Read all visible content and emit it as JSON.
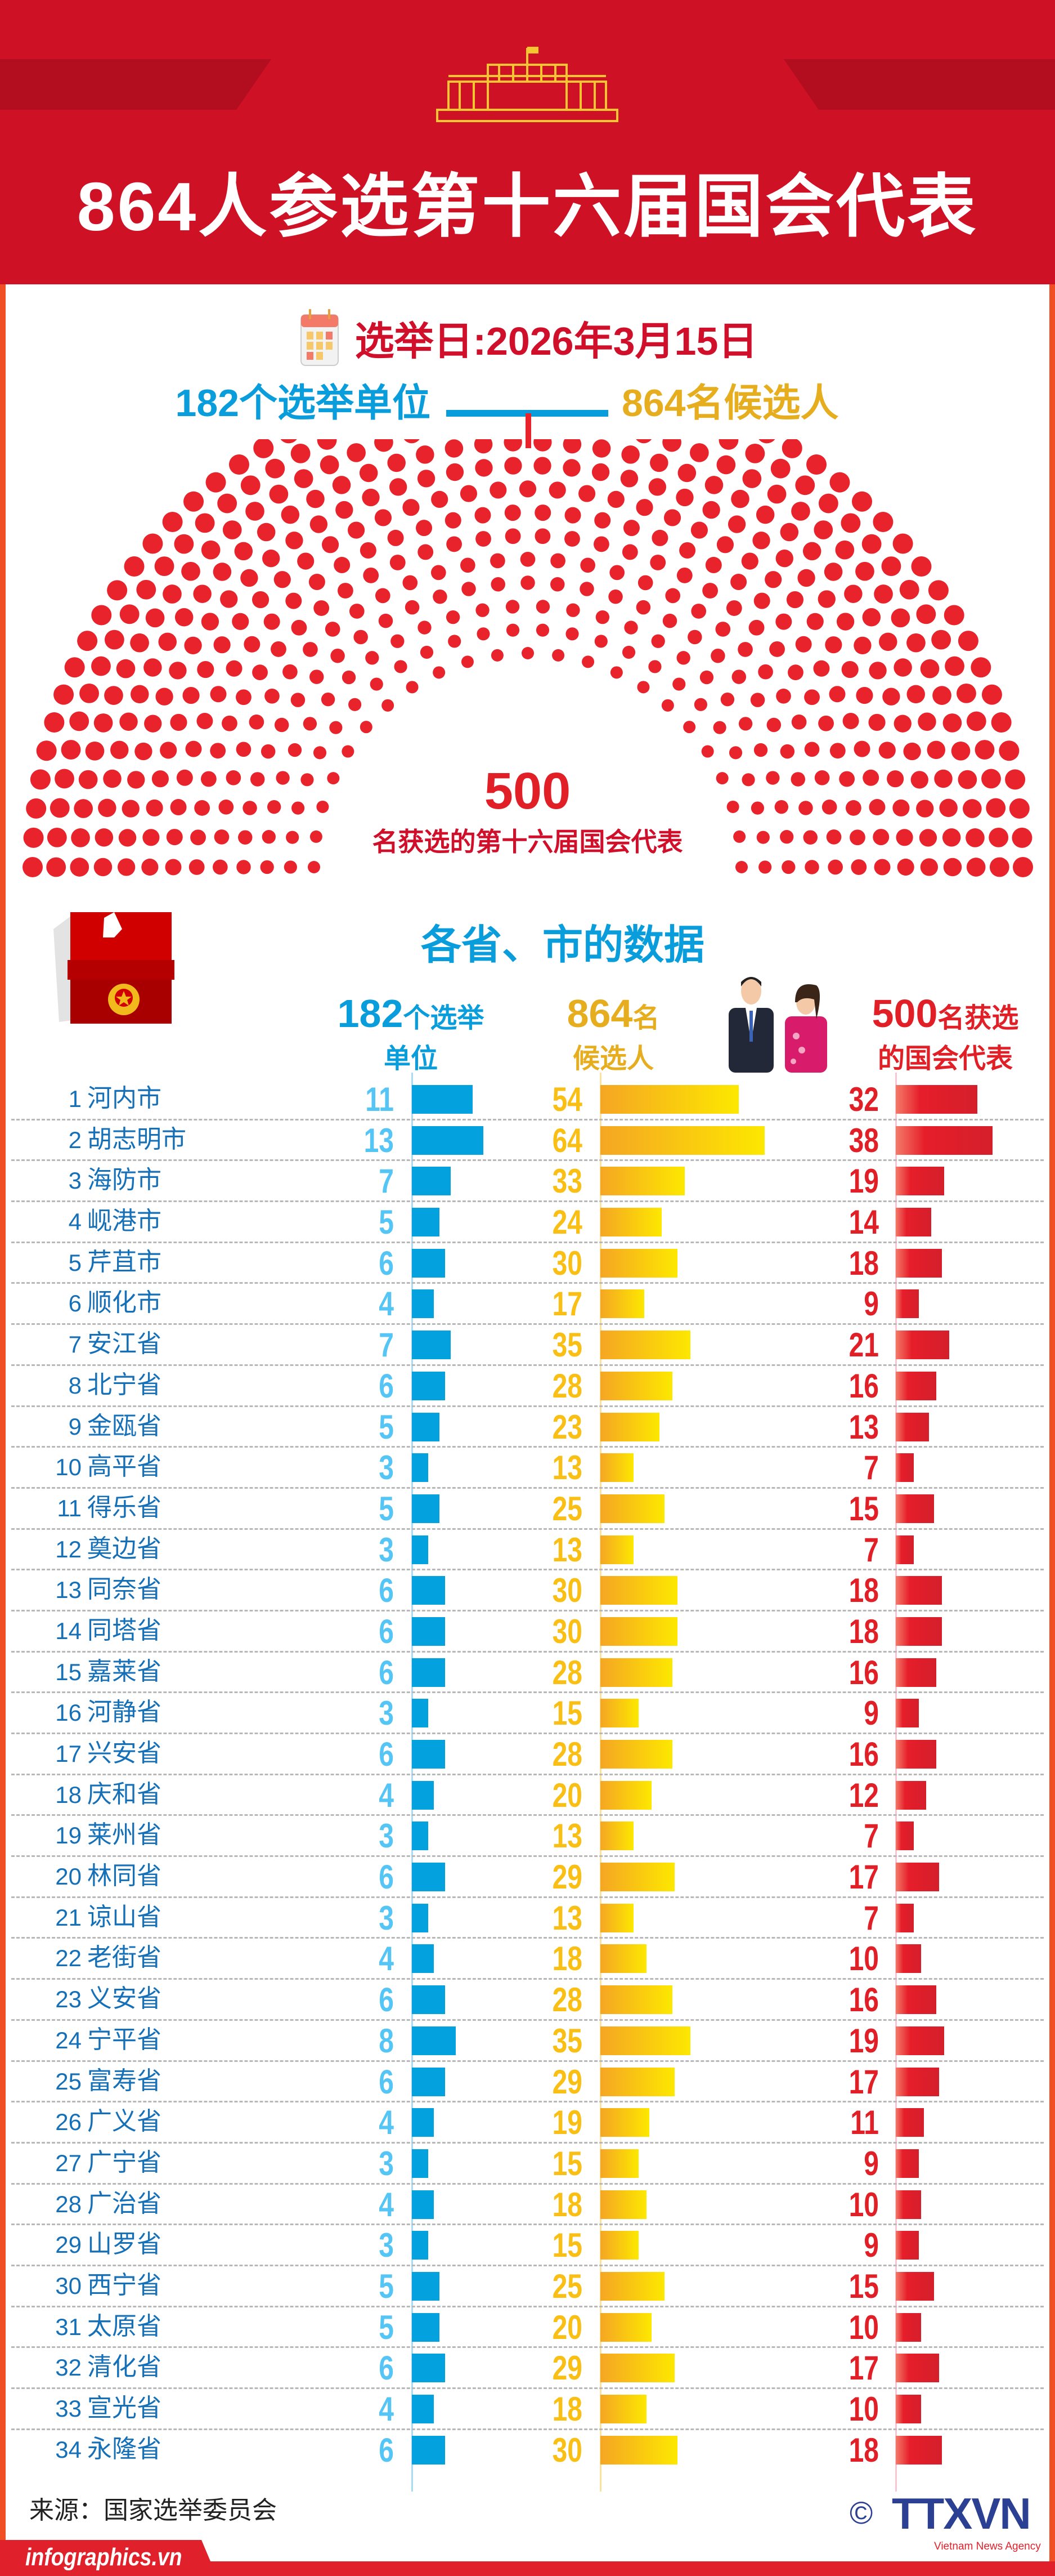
{
  "header": {
    "title": "864人参选第十六届国会代表"
  },
  "election_date": "选举日:2026年3月15日",
  "summary": {
    "constituencies": "182个选举单位",
    "candidates": "864名候选人"
  },
  "hemicycle": {
    "seats": 500,
    "number": "500",
    "label": "名获选的第十六届国会代表",
    "dot_color": "#e8232b"
  },
  "section_title": "各省、市的数据",
  "columns": [
    {
      "big": "182",
      "small": "个选举",
      "line2": "单位",
      "color": "#0a9ddc"
    },
    {
      "big": "864",
      "small": "名",
      "line2": "候选人",
      "color": "#e6ae1f"
    },
    {
      "big": "500",
      "small": "名获选",
      "line2": "的国会代表",
      "color": "#e01f26"
    }
  ],
  "rows": [
    {
      "no": "1",
      "name": "河内市",
      "units": 11,
      "candidates": 54,
      "deputies": 32
    },
    {
      "no": "2",
      "name": "胡志明市",
      "units": 13,
      "candidates": 64,
      "deputies": 38
    },
    {
      "no": "3",
      "name": "海防市",
      "units": 7,
      "candidates": 33,
      "deputies": 19
    },
    {
      "no": "4",
      "name": "岘港市",
      "units": 5,
      "candidates": 24,
      "deputies": 14
    },
    {
      "no": "5",
      "name": "芹苴市",
      "units": 6,
      "candidates": 30,
      "deputies": 18
    },
    {
      "no": "6",
      "name": "顺化市",
      "units": 4,
      "candidates": 17,
      "deputies": 9
    },
    {
      "no": "7",
      "name": "安江省",
      "units": 7,
      "candidates": 35,
      "deputies": 21
    },
    {
      "no": "8",
      "name": "北宁省",
      "units": 6,
      "candidates": 28,
      "deputies": 16
    },
    {
      "no": "9",
      "name": "金瓯省",
      "units": 5,
      "candidates": 23,
      "deputies": 13
    },
    {
      "no": "10",
      "name": "高平省",
      "units": 3,
      "candidates": 13,
      "deputies": 7
    },
    {
      "no": "11",
      "name": "得乐省",
      "units": 5,
      "candidates": 25,
      "deputies": 15
    },
    {
      "no": "12",
      "name": "奠边省",
      "units": 3,
      "candidates": 13,
      "deputies": 7
    },
    {
      "no": "13",
      "name": "同奈省",
      "units": 6,
      "candidates": 30,
      "deputies": 18
    },
    {
      "no": "14",
      "name": "同塔省",
      "units": 6,
      "candidates": 30,
      "deputies": 18
    },
    {
      "no": "15",
      "name": "嘉莱省",
      "units": 6,
      "candidates": 28,
      "deputies": 16
    },
    {
      "no": "16",
      "name": "河静省",
      "units": 3,
      "candidates": 15,
      "deputies": 9
    },
    {
      "no": "17",
      "name": "兴安省",
      "units": 6,
      "candidates": 28,
      "deputies": 16
    },
    {
      "no": "18",
      "name": "庆和省",
      "units": 4,
      "candidates": 20,
      "deputies": 12
    },
    {
      "no": "19",
      "name": "莱州省",
      "units": 3,
      "candidates": 13,
      "deputies": 7
    },
    {
      "no": "20",
      "name": "林同省",
      "units": 6,
      "candidates": 29,
      "deputies": 17
    },
    {
      "no": "21",
      "name": "谅山省",
      "units": 3,
      "candidates": 13,
      "deputies": 7
    },
    {
      "no": "22",
      "name": "老街省",
      "units": 4,
      "candidates": 18,
      "deputies": 10
    },
    {
      "no": "23",
      "name": "义安省",
      "units": 6,
      "candidates": 28,
      "deputies": 16
    },
    {
      "no": "24",
      "name": "宁平省",
      "units": 8,
      "candidates": 35,
      "deputies": 19
    },
    {
      "no": "25",
      "name": "富寿省",
      "units": 6,
      "candidates": 29,
      "deputies": 17
    },
    {
      "no": "26",
      "name": "广义省",
      "units": 4,
      "candidates": 19,
      "deputies": 11
    },
    {
      "no": "27",
      "name": "广宁省",
      "units": 3,
      "candidates": 15,
      "deputies": 9
    },
    {
      "no": "28",
      "name": "广治省",
      "units": 4,
      "candidates": 18,
      "deputies": 10
    },
    {
      "no": "29",
      "name": "山罗省",
      "units": 3,
      "candidates": 15,
      "deputies": 9
    },
    {
      "no": "30",
      "name": "西宁省",
      "units": 5,
      "candidates": 25,
      "deputies": 15
    },
    {
      "no": "31",
      "name": "太原省",
      "units": 5,
      "candidates": 20,
      "deputies": 10
    },
    {
      "no": "32",
      "name": "清化省",
      "units": 6,
      "candidates": 29,
      "deputies": 17
    },
    {
      "no": "33",
      "name": "宣光省",
      "units": 4,
      "candidates": 18,
      "deputies": 10
    },
    {
      "no": "34",
      "name": "永隆省",
      "units": 6,
      "candidates": 30,
      "deputies": 18
    }
  ],
  "footer": {
    "source": "来源：国家选举委员会",
    "site": "infographics.vn",
    "copyright": "©",
    "logo": "TTXVN",
    "logo_sub": "Vietnam News Agency"
  }
}
